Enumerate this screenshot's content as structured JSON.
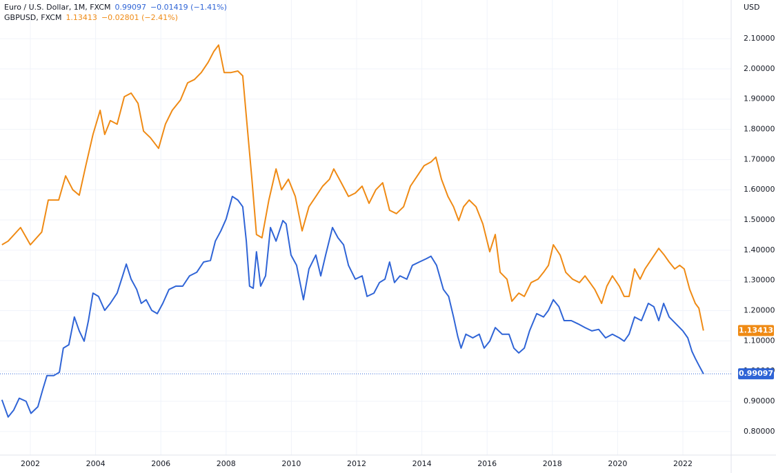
{
  "chart_data": {
    "type": "line",
    "y_unit": "USD",
    "xlim": [
      2001.07,
      2023.48
    ],
    "xticks": [
      2002,
      2004,
      2006,
      2008,
      2010,
      2012,
      2014,
      2016,
      2018,
      2020,
      2022
    ],
    "ylim": [
      0.722,
      2.228
    ],
    "yticks": [
      {
        "value": 0.8,
        "label": "0.80000"
      },
      {
        "value": 0.9,
        "label": "0.90000"
      },
      {
        "value": 1.0,
        "label": "1.00000"
      },
      {
        "value": 1.1,
        "label": "1.10000"
      },
      {
        "value": 1.2,
        "label": "1.20000"
      },
      {
        "value": 1.3,
        "label": "1.30000"
      },
      {
        "value": 1.4,
        "label": "1.40000"
      },
      {
        "value": 1.5,
        "label": "1.50000"
      },
      {
        "value": 1.6,
        "label": "1.60000"
      },
      {
        "value": 1.7,
        "label": "1.70000"
      },
      {
        "value": 1.8,
        "label": "1.80000"
      },
      {
        "value": 1.9,
        "label": "1.90000"
      },
      {
        "value": 2.0,
        "label": "2.00000"
      },
      {
        "value": 2.1,
        "label": "2.10000"
      }
    ],
    "grid": true,
    "series": [
      {
        "name": "Euro / U.S. Dollar, 1M, FXCM",
        "color": "#2f64d6",
        "change": "−0.01419 (−1.41%)",
        "x": [
          2001.13,
          2001.32,
          2001.49,
          2001.66,
          2001.87,
          2002.02,
          2002.23,
          2002.38,
          2002.51,
          2002.72,
          2002.89,
          2003.01,
          2003.18,
          2003.35,
          2003.5,
          2003.65,
          2003.78,
          2003.92,
          2004.09,
          2004.28,
          2004.45,
          2004.66,
          2004.83,
          2004.94,
          2005.09,
          2005.26,
          2005.4,
          2005.55,
          2005.72,
          2005.89,
          2006.06,
          2006.25,
          2006.46,
          2006.67,
          2006.88,
          2007.1,
          2007.31,
          2007.52,
          2007.67,
          2007.84,
          2008.0,
          2008.19,
          2008.36,
          2008.51,
          2008.62,
          2008.72,
          2008.83,
          2008.93,
          2009.06,
          2009.21,
          2009.36,
          2009.53,
          2009.74,
          2009.84,
          2009.99,
          2010.16,
          2010.37,
          2010.54,
          2010.75,
          2010.9,
          2011.05,
          2011.26,
          2011.43,
          2011.6,
          2011.75,
          2011.96,
          2012.17,
          2012.32,
          2012.53,
          2012.7,
          2012.87,
          2013.01,
          2013.16,
          2013.33,
          2013.54,
          2013.71,
          2013.92,
          2014.14,
          2014.28,
          2014.45,
          2014.66,
          2014.82,
          2014.97,
          2015.1,
          2015.2,
          2015.35,
          2015.56,
          2015.76,
          2015.91,
          2016.08,
          2016.25,
          2016.46,
          2016.67,
          2016.82,
          2016.97,
          2017.14,
          2017.3,
          2017.52,
          2017.73,
          2017.88,
          2018.03,
          2018.2,
          2018.36,
          2018.58,
          2018.79,
          2019.0,
          2019.21,
          2019.42,
          2019.63,
          2019.84,
          2020.05,
          2020.2,
          2020.35,
          2020.52,
          2020.73,
          2020.94,
          2021.11,
          2021.26,
          2021.41,
          2021.58,
          2021.79,
          2022.0,
          2022.15,
          2022.28,
          2022.38,
          2022.49,
          2022.63
        ],
        "values": [
          0.905,
          0.848,
          0.871,
          0.91,
          0.9,
          0.86,
          0.882,
          0.939,
          0.985,
          0.985,
          0.996,
          1.076,
          1.087,
          1.179,
          1.133,
          1.099,
          1.167,
          1.258,
          1.247,
          1.201,
          1.224,
          1.258,
          1.315,
          1.354,
          1.304,
          1.27,
          1.224,
          1.236,
          1.201,
          1.19,
          1.224,
          1.27,
          1.281,
          1.281,
          1.315,
          1.327,
          1.361,
          1.366,
          1.43,
          1.464,
          1.503,
          1.578,
          1.566,
          1.544,
          1.43,
          1.281,
          1.274,
          1.395,
          1.281,
          1.315,
          1.475,
          1.43,
          1.498,
          1.487,
          1.384,
          1.35,
          1.236,
          1.338,
          1.384,
          1.315,
          1.384,
          1.475,
          1.441,
          1.418,
          1.35,
          1.304,
          1.315,
          1.247,
          1.258,
          1.293,
          1.304,
          1.361,
          1.293,
          1.315,
          1.304,
          1.35,
          1.361,
          1.372,
          1.38,
          1.35,
          1.27,
          1.247,
          1.179,
          1.115,
          1.076,
          1.122,
          1.11,
          1.122,
          1.076,
          1.099,
          1.144,
          1.122,
          1.122,
          1.076,
          1.06,
          1.076,
          1.133,
          1.19,
          1.179,
          1.201,
          1.236,
          1.213,
          1.167,
          1.167,
          1.156,
          1.144,
          1.133,
          1.138,
          1.11,
          1.122,
          1.11,
          1.099,
          1.122,
          1.179,
          1.167,
          1.224,
          1.213,
          1.167,
          1.224,
          1.179,
          1.156,
          1.133,
          1.11,
          1.065,
          1.042,
          1.019,
          0.99097
        ]
      },
      {
        "name": "GBPUSD, FXCM",
        "color": "#ef8a14",
        "change": "−0.02801 (−2.41%)",
        "x": [
          2001.13,
          2001.32,
          2001.7,
          2002.0,
          2002.35,
          2002.55,
          2002.87,
          2003.08,
          2003.3,
          2003.5,
          2003.7,
          2003.92,
          2004.14,
          2004.28,
          2004.45,
          2004.66,
          2004.88,
          2005.09,
          2005.3,
          2005.47,
          2005.68,
          2005.93,
          2006.14,
          2006.35,
          2006.6,
          2006.82,
          2007.03,
          2007.24,
          2007.45,
          2007.62,
          2007.77,
          2007.94,
          2008.15,
          2008.36,
          2008.51,
          2008.64,
          2008.79,
          2008.93,
          2009.1,
          2009.31,
          2009.53,
          2009.7,
          2009.91,
          2010.12,
          2010.33,
          2010.54,
          2010.75,
          2010.96,
          2011.17,
          2011.3,
          2011.53,
          2011.75,
          2011.96,
          2012.17,
          2012.38,
          2012.59,
          2012.8,
          2013.01,
          2013.22,
          2013.44,
          2013.65,
          2013.86,
          2014.07,
          2014.28,
          2014.43,
          2014.6,
          2014.8,
          2014.97,
          2015.13,
          2015.28,
          2015.45,
          2015.66,
          2015.87,
          2016.08,
          2016.25,
          2016.4,
          2016.61,
          2016.76,
          2016.97,
          2017.14,
          2017.35,
          2017.56,
          2017.73,
          2017.88,
          2018.03,
          2018.24,
          2018.41,
          2018.62,
          2018.83,
          2019.0,
          2019.15,
          2019.3,
          2019.51,
          2019.67,
          2019.84,
          2020.05,
          2020.2,
          2020.35,
          2020.52,
          2020.69,
          2020.84,
          2021.05,
          2021.26,
          2021.43,
          2021.58,
          2021.75,
          2021.9,
          2022.04,
          2022.21,
          2022.38,
          2022.49,
          2022.63
        ],
        "values": [
          1.418,
          1.43,
          1.475,
          1.418,
          1.46,
          1.566,
          1.566,
          1.646,
          1.6,
          1.582,
          1.68,
          1.783,
          1.863,
          1.783,
          1.829,
          1.817,
          1.908,
          1.92,
          1.886,
          1.794,
          1.772,
          1.737,
          1.817,
          1.863,
          1.897,
          1.954,
          1.965,
          1.988,
          2.022,
          2.057,
          2.079,
          1.988,
          1.988,
          1.993,
          1.977,
          1.817,
          1.635,
          1.452,
          1.441,
          1.566,
          1.669,
          1.6,
          1.635,
          1.578,
          1.464,
          1.544,
          1.578,
          1.612,
          1.635,
          1.669,
          1.623,
          1.578,
          1.589,
          1.612,
          1.555,
          1.6,
          1.623,
          1.532,
          1.521,
          1.544,
          1.612,
          1.646,
          1.68,
          1.692,
          1.708,
          1.635,
          1.578,
          1.544,
          1.498,
          1.544,
          1.566,
          1.544,
          1.487,
          1.395,
          1.452,
          1.327,
          1.304,
          1.231,
          1.258,
          1.247,
          1.293,
          1.304,
          1.327,
          1.35,
          1.418,
          1.384,
          1.327,
          1.304,
          1.293,
          1.315,
          1.293,
          1.27,
          1.224,
          1.281,
          1.315,
          1.281,
          1.247,
          1.247,
          1.338,
          1.304,
          1.338,
          1.372,
          1.406,
          1.384,
          1.361,
          1.338,
          1.35,
          1.338,
          1.27,
          1.224,
          1.208,
          1.13413
        ]
      }
    ]
  }
}
